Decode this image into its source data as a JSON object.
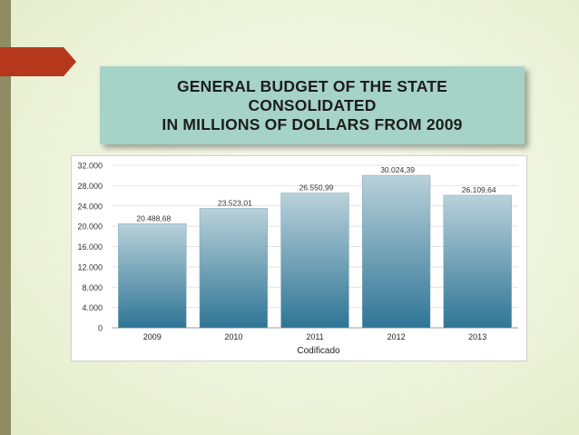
{
  "slide": {
    "title_lines": [
      "GENERAL BUDGET OF THE STATE",
      "CONSOLIDATED",
      "IN MILLIONS OF DOLLARS FROM 2009"
    ],
    "accent_color": "#b5371c",
    "title_box_color": "#a6d3c8"
  },
  "chart_data": {
    "type": "bar",
    "title": "GENERAL BUDGET OF THE STATE CONSOLIDATED IN MILLIONS OF DOLLARS FROM 2009",
    "xlabel": "Codificado",
    "ylabel": "",
    "categories": [
      "2009",
      "2010",
      "2011",
      "2012",
      "2013"
    ],
    "values": [
      20488.68,
      23523.01,
      26550.99,
      30024.39,
      26109.64
    ],
    "value_labels": [
      "20.488,68",
      "23.523,01",
      "26.550,99",
      "30.024,39",
      "26.109,64"
    ],
    "ylim": [
      0,
      32000
    ],
    "yticks": [
      0,
      4000,
      8000,
      12000,
      16000,
      20000,
      24000,
      28000,
      32000
    ],
    "ytick_labels": [
      "0",
      "4.000",
      "8.000",
      "12.000",
      "16.000",
      "20.000",
      "24.000",
      "28.000",
      "32.000"
    ],
    "grid": true,
    "legend": "none",
    "bar_color_top": "#b9d1da",
    "bar_color_bottom": "#2f7596"
  }
}
